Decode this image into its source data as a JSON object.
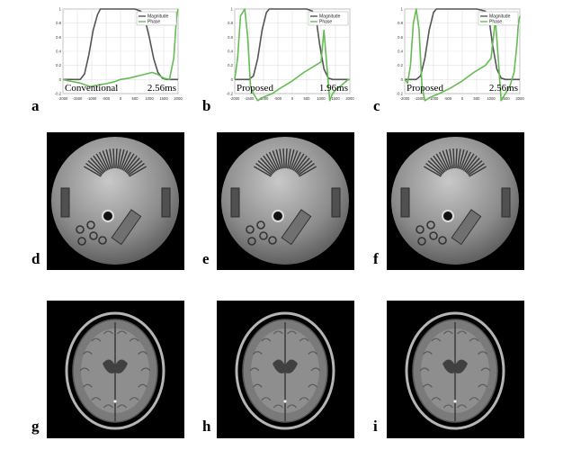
{
  "panel_labels": {
    "a": "a",
    "b": "b",
    "c": "c",
    "d": "d",
    "e": "e",
    "f": "f",
    "g": "g",
    "h": "h",
    "i": "i"
  },
  "chart_data": [
    {
      "type": "line",
      "panel": "a",
      "method": "Conventional",
      "duration": "2.56ms",
      "legend": [
        "Magnitude",
        "Phase"
      ],
      "legend_position": "top-right",
      "xlim": [
        -2000,
        2000
      ],
      "ylim": [
        -0.2,
        1.0
      ],
      "xticks": [
        "-2000",
        "-1500",
        "-1000",
        "-500",
        "0",
        "500",
        "1000",
        "1500",
        "2000"
      ],
      "yticks": [
        "-0.2",
        "0",
        "0.2",
        "0.4",
        "0.6",
        "0.8",
        "1"
      ],
      "grid": true,
      "series": [
        {
          "name": "Magnitude",
          "color": "#555555",
          "x": [
            -2000,
            -1400,
            -1250,
            -1100,
            -950,
            -800,
            -700,
            -500,
            0,
            500,
            700,
            850,
            1000,
            1150,
            1300,
            1450,
            1600,
            2000
          ],
          "y": [
            0,
            0,
            0.08,
            0.35,
            0.7,
            0.92,
            1,
            1,
            1,
            1,
            0.97,
            0.85,
            0.6,
            0.3,
            0.1,
            0.02,
            0,
            0
          ]
        },
        {
          "name": "Phase",
          "color": "#66bb55",
          "x": [
            -2000,
            -1800,
            -1400,
            -1200,
            -1050,
            -800,
            -500,
            -200,
            0,
            300,
            500,
            700,
            900,
            1100,
            1300,
            1500,
            1700,
            1850,
            1950,
            2000
          ],
          "y": [
            0,
            -0.02,
            -0.05,
            -0.08,
            -0.1,
            -0.08,
            -0.06,
            -0.03,
            0,
            0.02,
            0.04,
            0.06,
            0.08,
            0.1,
            0.07,
            0.02,
            0,
            0.3,
            0.9,
            1.0
          ]
        }
      ]
    },
    {
      "type": "line",
      "panel": "b",
      "method": "Proposed",
      "duration": "1.96ms",
      "legend": [
        "Magnitude",
        "Phase"
      ],
      "legend_position": "top-right",
      "xlim": [
        -2000,
        2000
      ],
      "ylim": [
        -0.2,
        1.0
      ],
      "xticks": [
        "-2000",
        "-1500",
        "-1000",
        "-500",
        "0",
        "500",
        "1000",
        "1500",
        "2000"
      ],
      "yticks": [
        "-0.2",
        "0",
        "0.2",
        "0.4",
        "0.6",
        "0.8",
        "1"
      ],
      "grid": true,
      "series": [
        {
          "name": "Magnitude",
          "color": "#555555",
          "x": [
            -2000,
            -1500,
            -1350,
            -1200,
            -1050,
            -900,
            -800,
            -500,
            0,
            500,
            700,
            850,
            950,
            1100,
            1250,
            1400,
            2000
          ],
          "y": [
            0,
            0,
            0.05,
            0.3,
            0.7,
            0.95,
            1,
            1,
            1,
            1,
            0.97,
            0.8,
            0.5,
            0.15,
            0.02,
            0,
            0
          ]
        },
        {
          "name": "Phase",
          "color": "#66bb55",
          "x": [
            -2000,
            -1900,
            -1800,
            -1650,
            -1550,
            -1450,
            -1350,
            -1200,
            -1000,
            -700,
            -400,
            0,
            400,
            800,
            1000,
            1100,
            1200,
            1300,
            1400,
            1500,
            1650,
            1800,
            1950,
            2000
          ],
          "y": [
            0,
            0.3,
            0.9,
            1.0,
            0.6,
            -0.1,
            -0.2,
            -0.3,
            -0.25,
            -0.2,
            -0.12,
            -0.02,
            0.1,
            0.2,
            0.25,
            0.7,
            0.2,
            -0.3,
            -0.2,
            -0.15,
            -0.1,
            -0.05,
            0,
            0
          ]
        }
      ]
    },
    {
      "type": "line",
      "panel": "c",
      "method": "Proposed",
      "duration": "2.56ms",
      "legend": [
        "Magnitude",
        "Phase"
      ],
      "legend_position": "top-right",
      "xlim": [
        -2000,
        2000
      ],
      "ylim": [
        -0.2,
        1.0
      ],
      "xticks": [
        "-2000",
        "-1500",
        "-1000",
        "-500",
        "0",
        "500",
        "1000",
        "1500",
        "2000"
      ],
      "yticks": [
        "-0.2",
        "0",
        "0.2",
        "0.4",
        "0.6",
        "0.8",
        "1"
      ],
      "grid": true,
      "series": [
        {
          "name": "Magnitude",
          "color": "#555555",
          "x": [
            -2000,
            -1600,
            -1450,
            -1300,
            -1150,
            -1000,
            -900,
            -500,
            0,
            500,
            800,
            950,
            1050,
            1200,
            1350,
            1500,
            2000
          ],
          "y": [
            0,
            0,
            0.05,
            0.3,
            0.7,
            0.95,
            1,
            1,
            1,
            1,
            0.97,
            0.8,
            0.5,
            0.15,
            0.02,
            0,
            0
          ]
        },
        {
          "name": "Phase",
          "color": "#66bb55",
          "x": [
            -2000,
            -1900,
            -1800,
            -1700,
            -1600,
            -1500,
            -1400,
            -1300,
            -1100,
            -800,
            -400,
            0,
            400,
            800,
            1000,
            1150,
            1250,
            1350,
            1500,
            1650,
            1800,
            1900,
            1950,
            2000
          ],
          "y": [
            0,
            -0.05,
            0.2,
            0.8,
            1.0,
            0.7,
            -0.1,
            -0.3,
            -0.25,
            -0.2,
            -0.12,
            -0.02,
            0.1,
            0.2,
            0.3,
            0.85,
            0.3,
            -0.3,
            -0.2,
            -0.1,
            0.1,
            0.5,
            0.8,
            0.9
          ]
        }
      ]
    }
  ]
}
